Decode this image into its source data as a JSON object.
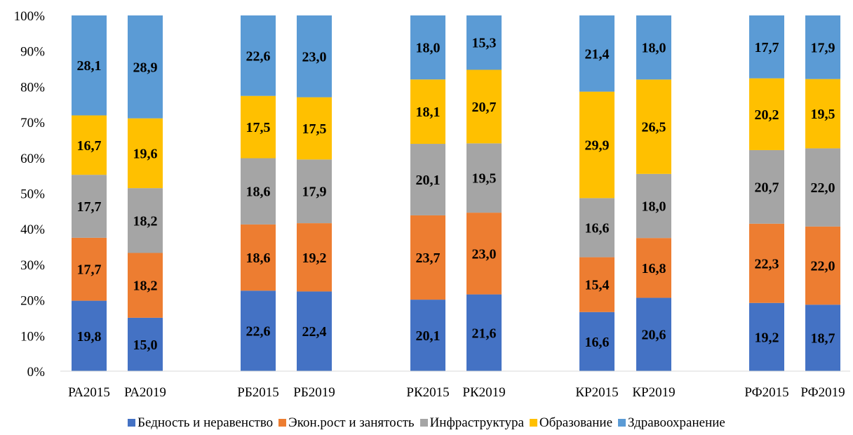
{
  "chart_data": {
    "type": "bar",
    "stacked": true,
    "percent": true,
    "categories": [
      "РА2015",
      "РА2019",
      "РБ2015",
      "РБ2019",
      "РК2015",
      "РК2019",
      "КР2015",
      "КР2019",
      "РФ2015",
      "РФ2019"
    ],
    "series": [
      {
        "name": "Бедность и неравенство",
        "color": "#4472C4",
        "values": [
          19.8,
          15.0,
          22.6,
          22.4,
          20.1,
          21.6,
          16.6,
          20.6,
          19.2,
          18.7
        ],
        "labels": [
          "19,8",
          "15,0",
          "22,6",
          "22,4",
          "20,1",
          "21,6",
          "16,6",
          "20,6",
          "19,2",
          "18,7"
        ]
      },
      {
        "name": "Экон.рост и занятость",
        "color": "#ED7D31",
        "values": [
          17.7,
          18.2,
          18.6,
          19.2,
          23.7,
          23.0,
          15.4,
          16.8,
          22.3,
          22.0
        ],
        "labels": [
          "17,7",
          "18,2",
          "18,6",
          "19,2",
          "23,7",
          "23,0",
          "15,4",
          "16,8",
          "22,3",
          "22,0"
        ]
      },
      {
        "name": "Инфраструктура",
        "color": "#A5A5A5",
        "values": [
          17.7,
          18.2,
          18.6,
          17.9,
          20.1,
          19.5,
          16.6,
          18.0,
          20.7,
          22.0
        ],
        "labels": [
          "17,7",
          "18,2",
          "18,6",
          "17,9",
          "20,1",
          "19,5",
          "16,6",
          "18,0",
          "20,7",
          "22,0"
        ]
      },
      {
        "name": "Образование",
        "color": "#FFC000",
        "values": [
          16.7,
          19.6,
          17.5,
          17.5,
          18.1,
          20.7,
          29.9,
          26.5,
          20.2,
          19.5
        ],
        "labels": [
          "16,7",
          "19,6",
          "17,5",
          "17,5",
          "18,1",
          "20,7",
          "29,9",
          "26,5",
          "20,2",
          "19,5"
        ]
      },
      {
        "name": "Здравоохранение",
        "color": "#5B9BD5",
        "values": [
          28.1,
          28.9,
          22.6,
          23.0,
          18.0,
          15.3,
          21.4,
          18.0,
          17.7,
          17.9
        ],
        "labels": [
          "28,1",
          "28,9",
          "22,6",
          "23,0",
          "18,0",
          "15,3",
          "21,4",
          "18,0",
          "17,7",
          "17,9"
        ]
      }
    ],
    "y_ticks": [
      "0%",
      "10%",
      "20%",
      "30%",
      "40%",
      "50%",
      "60%",
      "70%",
      "80%",
      "90%",
      "100%"
    ],
    "ylim": [
      0,
      100
    ],
    "grid": false,
    "legend_position": "bottom"
  }
}
